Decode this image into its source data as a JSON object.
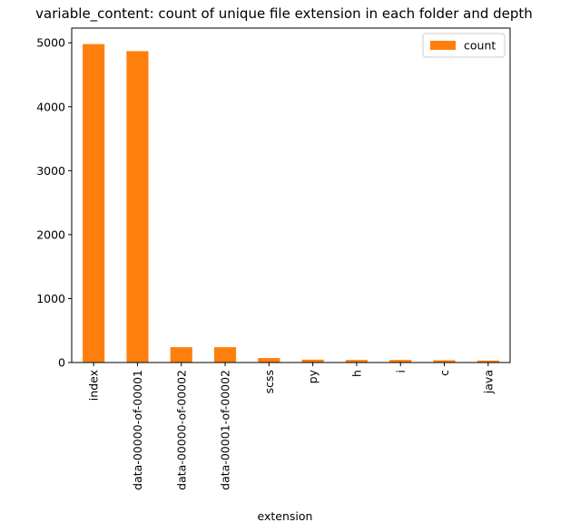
{
  "chart_data": {
    "type": "bar",
    "title": "variable_content: count of unique file extension in each folder and depth",
    "xlabel": "extension",
    "ylabel": "",
    "categories": [
      "index",
      "data-00000-of-00001",
      "data-00000-of-00002",
      "data-00001-of-00002",
      "scss",
      "py",
      "h",
      "i",
      "c",
      "java"
    ],
    "series": [
      {
        "name": "count",
        "values": [
          4980,
          4870,
          240,
          240,
          70,
          45,
          40,
          40,
          35,
          30
        ],
        "color": "#ff7f0e"
      }
    ],
    "ylim": [
      0,
      5230
    ],
    "yticks": [
      0,
      1000,
      2000,
      3000,
      4000,
      5000
    ],
    "grid": false,
    "legend_position": "top-right"
  }
}
